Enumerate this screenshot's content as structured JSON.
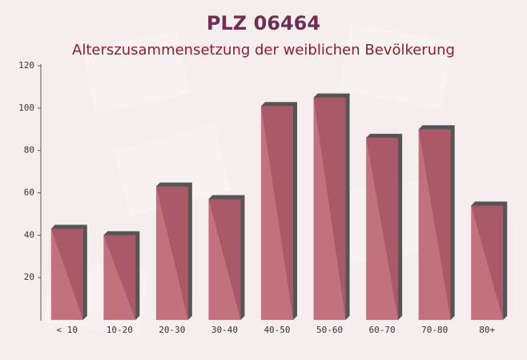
{
  "chart_data": {
    "type": "bar",
    "title": "PLZ 06464",
    "subtitle": "Alterszusammensetzung der weiblichen Bevölkerung",
    "categories": [
      "< 10",
      "10-20",
      "20-30",
      "30-40",
      "40-50",
      "50-60",
      "60-70",
      "70-80",
      "80+"
    ],
    "values": [
      43,
      40,
      63,
      57,
      101,
      105,
      86,
      90,
      54
    ],
    "color": "#b85a6b",
    "ylim": [
      0,
      120
    ],
    "yticks": [
      20,
      40,
      60,
      80,
      100,
      120
    ]
  }
}
